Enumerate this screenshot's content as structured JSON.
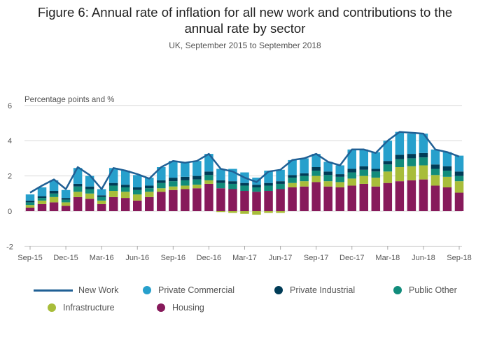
{
  "title_line1": "Figure 6: Annual rate of inflation for all new work and contributions to the",
  "title_line2": "annual rate by sector",
  "subtitle": "UK, September 2015 to September 2018",
  "colors": {
    "new_work": "#206095",
    "private_commercial": "#27a0cc",
    "private_industrial": "#003c57",
    "public_other": "#118c7b",
    "infrastructure": "#a8bd3a",
    "housing": "#871a5b",
    "grid": "#d9d9d9"
  },
  "chart_data": {
    "type": "bar",
    "stacked": true,
    "ylabel": "Percentage points and %",
    "ylim": [
      -2,
      6
    ],
    "yticks": [
      -2,
      0,
      2,
      4,
      6
    ],
    "grid": true,
    "legend_position": "bottom",
    "categories": [
      "Sep-15",
      "Oct-15",
      "Nov-15",
      "Dec-15",
      "Jan-16",
      "Feb-16",
      "Mar-16",
      "Apr-16",
      "May-16",
      "Jun-16",
      "Jul-16",
      "Aug-16",
      "Sep-16",
      "Oct-16",
      "Nov-16",
      "Dec-16",
      "Jan-17",
      "Feb-17",
      "Mar-17",
      "Apr-17",
      "May-17",
      "Jun-17",
      "Jul-17",
      "Aug-17",
      "Sep-17",
      "Oct-17",
      "Nov-17",
      "Dec-17",
      "Jan-18",
      "Feb-18",
      "Mar-18",
      "Apr-18",
      "May-18",
      "Jun-18",
      "Jul-18",
      "Aug-18",
      "Sep-18"
    ],
    "tick_labels": [
      "Sep-15",
      "Dec-15",
      "Mar-16",
      "Jun-16",
      "Sep-16",
      "Dec-16",
      "Mar-17",
      "Jun-17",
      "Sep-17",
      "Dec-17",
      "Mar-18",
      "Jun-18",
      "Sep-18"
    ],
    "tick_categories": [
      "Sep-15",
      "Dec-15",
      "Mar-16",
      "Jun-16",
      "Sep-16",
      "Dec-16",
      "Mar-17",
      "Jun-17",
      "Sep-17",
      "Dec-17",
      "Mar-18",
      "Jun-18",
      "Sep-18"
    ],
    "series": [
      {
        "name": "Housing",
        "color_key": "housing",
        "values": [
          0.2,
          0.4,
          0.5,
          0.3,
          0.8,
          0.7,
          0.4,
          0.8,
          0.75,
          0.6,
          0.8,
          1.1,
          1.2,
          1.25,
          1.3,
          1.55,
          1.3,
          1.25,
          1.15,
          1.1,
          1.15,
          1.25,
          1.35,
          1.4,
          1.65,
          1.4,
          1.35,
          1.45,
          1.55,
          1.4,
          1.6,
          1.7,
          1.75,
          1.8,
          1.45,
          1.35,
          1.05
        ]
      },
      {
        "name": "Infrastructure",
        "color_key": "infrastructure",
        "values": [
          0.15,
          0.2,
          0.3,
          0.2,
          0.3,
          0.3,
          0.2,
          0.35,
          0.35,
          0.35,
          0.3,
          0.2,
          0.2,
          0.2,
          0.2,
          0.2,
          -0.05,
          -0.1,
          -0.15,
          -0.2,
          -0.1,
          -0.1,
          0.25,
          0.3,
          0.35,
          0.3,
          0.3,
          0.4,
          0.45,
          0.5,
          0.65,
          0.8,
          0.8,
          0.8,
          0.6,
          0.6,
          0.65
        ]
      },
      {
        "name": "Public Other",
        "color_key": "public_other",
        "values": [
          0.15,
          0.15,
          0.2,
          0.15,
          0.3,
          0.25,
          0.2,
          0.3,
          0.25,
          0.25,
          0.2,
          0.3,
          0.3,
          0.3,
          0.3,
          0.3,
          0.3,
          0.3,
          0.3,
          0.25,
          0.3,
          0.3,
          0.3,
          0.3,
          0.3,
          0.35,
          0.3,
          0.35,
          0.35,
          0.35,
          0.4,
          0.45,
          0.45,
          0.45,
          0.35,
          0.35,
          0.3
        ]
      },
      {
        "name": "Private Industrial",
        "color_key": "private_industrial",
        "values": [
          0.1,
          0.1,
          0.15,
          0.1,
          0.15,
          0.15,
          0.1,
          0.15,
          0.15,
          0.15,
          0.15,
          0.15,
          0.2,
          0.2,
          0.2,
          0.2,
          0.15,
          0.15,
          0.15,
          0.15,
          0.15,
          0.15,
          0.15,
          0.15,
          0.2,
          0.2,
          0.15,
          0.2,
          0.2,
          0.15,
          0.2,
          0.25,
          0.25,
          0.25,
          0.25,
          0.25,
          0.25
        ]
      },
      {
        "name": "Private Commercial",
        "color_key": "private_commercial",
        "values": [
          0.35,
          0.5,
          0.6,
          0.45,
          0.9,
          0.6,
          0.35,
          0.85,
          0.8,
          0.7,
          0.45,
          0.75,
          0.95,
          0.8,
          0.85,
          1.0,
          0.65,
          0.7,
          0.6,
          0.4,
          0.7,
          0.65,
          0.85,
          0.85,
          0.75,
          0.55,
          0.5,
          1.1,
          0.95,
          0.95,
          1.15,
          1.3,
          1.15,
          1.1,
          0.85,
          0.8,
          0.9
        ]
      },
      {
        "name": "New Work",
        "type": "line",
        "color_key": "new_work",
        "values": [
          1.05,
          1.45,
          1.8,
          1.25,
          2.5,
          2.05,
          1.25,
          2.45,
          2.3,
          2.1,
          1.85,
          2.5,
          2.85,
          2.75,
          2.85,
          3.25,
          2.4,
          2.25,
          1.9,
          1.65,
          2.25,
          2.35,
          2.9,
          3.0,
          3.25,
          2.8,
          2.6,
          3.5,
          3.5,
          3.3,
          4.0,
          4.5,
          4.45,
          4.4,
          3.5,
          3.35,
          3.1
        ]
      }
    ]
  },
  "legend": [
    {
      "label": "New Work",
      "kind": "line",
      "color_key": "new_work"
    },
    {
      "label": "Private Commercial",
      "kind": "dot",
      "color_key": "private_commercial"
    },
    {
      "label": "Private Industrial",
      "kind": "dot",
      "color_key": "private_industrial"
    },
    {
      "label": "Public Other",
      "kind": "dot",
      "color_key": "public_other"
    },
    {
      "label": "Infrastructure",
      "kind": "dot",
      "color_key": "infrastructure"
    },
    {
      "label": "Housing",
      "kind": "dot",
      "color_key": "housing"
    }
  ]
}
